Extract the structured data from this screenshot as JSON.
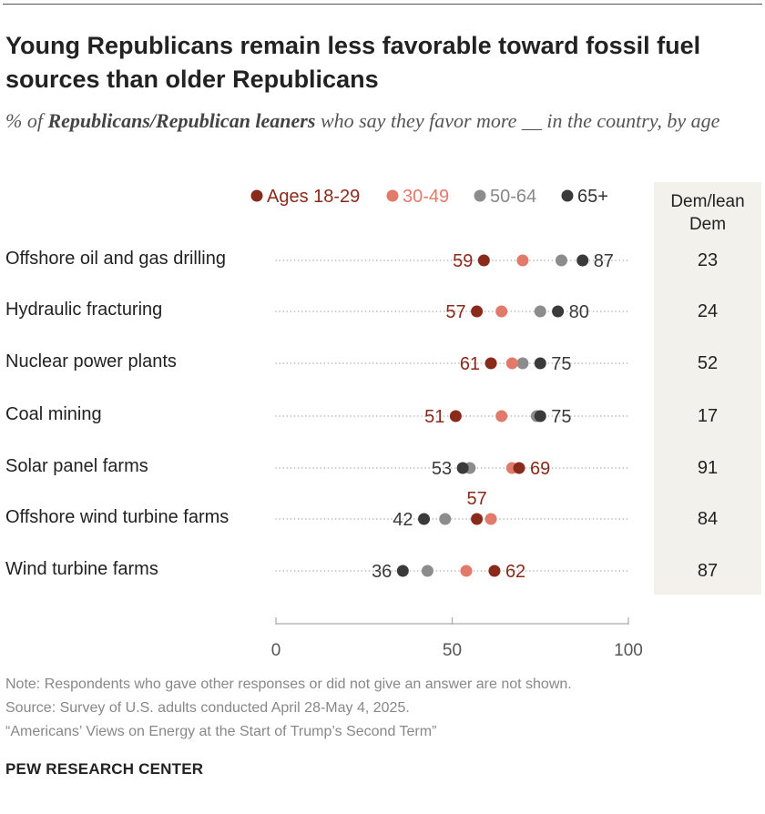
{
  "title": "Young Republicans remain less favorable toward fossil fuel sources than older Republicans",
  "subtitle": {
    "prefix": "% of ",
    "emphasis": "Republicans/Republican leaners",
    "suffix": " who say they favor more __ in the country, by age"
  },
  "dem_column_header": "Dem/lean Dem",
  "notes": {
    "note": "Note: Respondents who gave other responses or did not give an answer are not shown.",
    "source": "Source: Survey of U.S. adults conducted April 28-May 4, 2025.",
    "report": "“Americans’ Views on Energy at the Start of Trump’s Second Term”"
  },
  "brand": "PEW RESEARCH CENTER",
  "colors": {
    "ages_18_29": "#8a2a1b",
    "ages_30_49": "#e27a6b",
    "ages_50_64": "#8c8c8c",
    "ages_65_plus": "#3a3a3a",
    "dem_column_bg": "#f3f1ec"
  },
  "chart_data": {
    "type": "scatter",
    "subtype": "dot-plot",
    "title": "Young Republicans remain less favorable toward fossil fuel sources than older Republicans",
    "xlim": [
      0,
      100
    ],
    "xticks": [
      0,
      50,
      100
    ],
    "legend_position": "top",
    "series": [
      {
        "name": "Ages 18-29",
        "key": "ages_18_29",
        "values": [
          59,
          57,
          61,
          51,
          69,
          57,
          62
        ]
      },
      {
        "name": "30-49",
        "key": "ages_30_49",
        "values": [
          70,
          64,
          67,
          64,
          67,
          61,
          54
        ]
      },
      {
        "name": "50-64",
        "key": "ages_50_64",
        "values": [
          81,
          75,
          70,
          74,
          55,
          48,
          43
        ]
      },
      {
        "name": "65+",
        "key": "ages_65_plus",
        "values": [
          87,
          80,
          75,
          75,
          53,
          42,
          36
        ]
      }
    ],
    "categories": [
      {
        "label": "Offshore oil and gas drilling",
        "dem": 23,
        "labels": [
          {
            "series": "ages_18_29",
            "text": "59",
            "pos": "left"
          },
          {
            "series": "ages_65_plus",
            "text": "87",
            "pos": "right"
          }
        ]
      },
      {
        "label": "Hydraulic fracturing",
        "dem": 24,
        "labels": [
          {
            "series": "ages_18_29",
            "text": "57",
            "pos": "left"
          },
          {
            "series": "ages_65_plus",
            "text": "80",
            "pos": "right"
          }
        ]
      },
      {
        "label": "Nuclear power plants",
        "dem": 52,
        "labels": [
          {
            "series": "ages_18_29",
            "text": "61",
            "pos": "left"
          },
          {
            "series": "ages_65_plus",
            "text": "75",
            "pos": "right"
          }
        ]
      },
      {
        "label": "Coal mining",
        "dem": 17,
        "labels": [
          {
            "series": "ages_18_29",
            "text": "51",
            "pos": "left"
          },
          {
            "series": "ages_65_plus",
            "text": "75",
            "pos": "right"
          }
        ]
      },
      {
        "label": "Solar panel farms",
        "dem": 91,
        "labels": [
          {
            "series": "ages_65_plus",
            "text": "53",
            "pos": "left"
          },
          {
            "series": "ages_18_29",
            "text": "69",
            "pos": "right"
          }
        ]
      },
      {
        "label": "Offshore wind turbine farms",
        "dem": 84,
        "labels": [
          {
            "series": "ages_65_plus",
            "text": "42",
            "pos": "left"
          },
          {
            "series": "ages_18_29",
            "text": "57",
            "pos": "above"
          }
        ]
      },
      {
        "label": "Wind turbine farms",
        "dem": 87,
        "labels": [
          {
            "series": "ages_65_plus",
            "text": "36",
            "pos": "left"
          },
          {
            "series": "ages_18_29",
            "text": "62",
            "pos": "right"
          }
        ]
      }
    ]
  }
}
